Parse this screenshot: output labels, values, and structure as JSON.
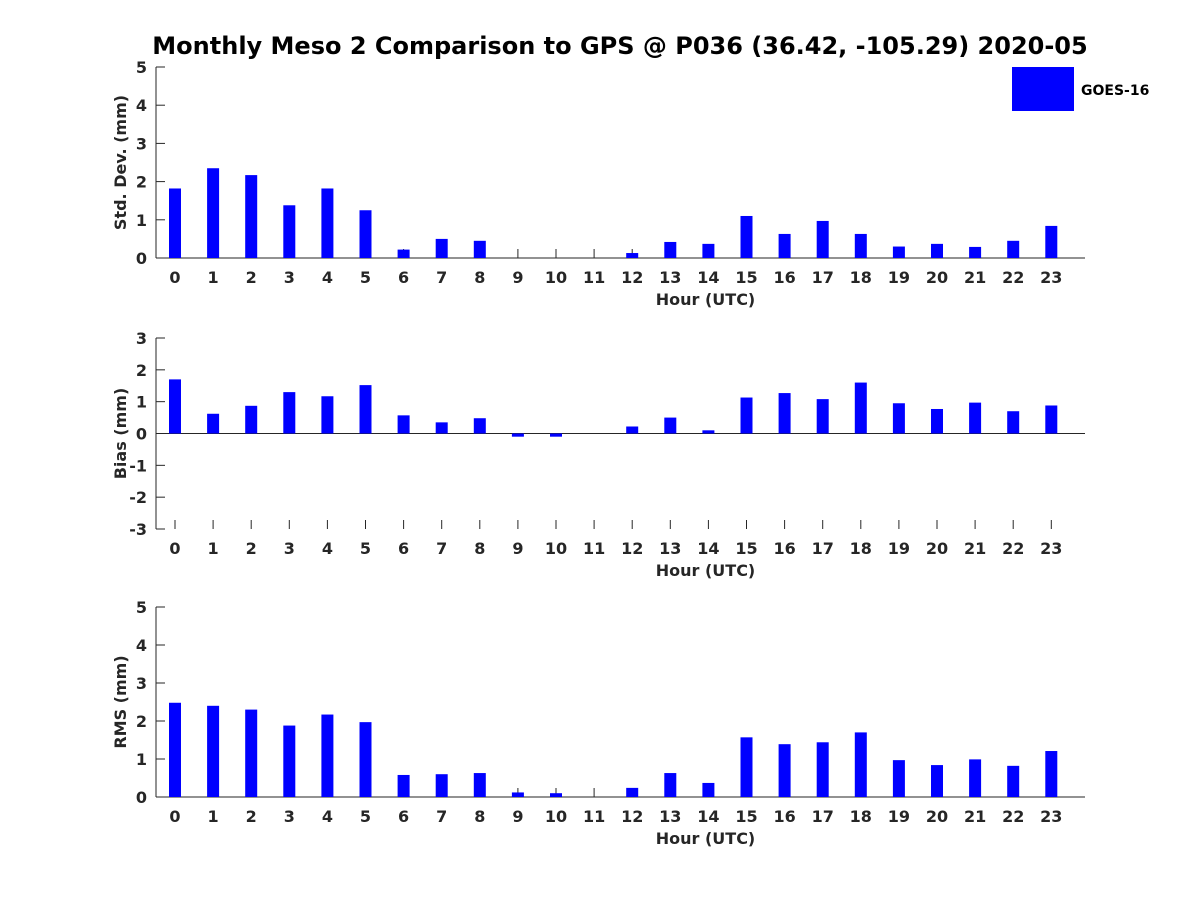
{
  "figure_title": "Monthly Meso 2 Comparison to GPS @ P036 (36.42, -105.29) 2020-05",
  "legend": {
    "label": "GOES-16",
    "color": "#0000ff"
  },
  "chart_data": [
    {
      "type": "bar",
      "ylabel": "Std. Dev. (mm)",
      "xlabel": "Hour (UTC)",
      "categories": [
        "0",
        "1",
        "2",
        "3",
        "4",
        "5",
        "6",
        "7",
        "8",
        "9",
        "10",
        "11",
        "12",
        "13",
        "14",
        "15",
        "16",
        "17",
        "18",
        "19",
        "20",
        "21",
        "22",
        "23"
      ],
      "ylim": [
        0,
        5
      ],
      "yticks": [
        0,
        1,
        2,
        3,
        4,
        5
      ],
      "series": [
        {
          "name": "GOES-16",
          "color": "#0000ff",
          "values": [
            1.82,
            2.35,
            2.17,
            1.38,
            1.82,
            1.25,
            0.22,
            0.5,
            0.45,
            0,
            0,
            0,
            0.13,
            0.42,
            0.37,
            1.1,
            0.63,
            0.97,
            0.63,
            0.3,
            0.37,
            0.29,
            0.45,
            0.84
          ]
        }
      ]
    },
    {
      "type": "bar",
      "ylabel": "Bias (mm)",
      "xlabel": "Hour (UTC)",
      "categories": [
        "0",
        "1",
        "2",
        "3",
        "4",
        "5",
        "6",
        "7",
        "8",
        "9",
        "10",
        "11",
        "12",
        "13",
        "14",
        "15",
        "16",
        "17",
        "18",
        "19",
        "20",
        "21",
        "22",
        "23"
      ],
      "ylim": [
        -3,
        3
      ],
      "yticks": [
        -3,
        -2,
        -1,
        0,
        1,
        2,
        3
      ],
      "series": [
        {
          "name": "GOES-16",
          "color": "#0000ff",
          "values": [
            1.7,
            0.62,
            0.87,
            1.3,
            1.17,
            1.52,
            0.57,
            0.35,
            0.48,
            -0.1,
            -0.1,
            0,
            0.22,
            0.5,
            0.1,
            1.13,
            1.27,
            1.08,
            1.6,
            0.95,
            0.77,
            0.97,
            0.7,
            0.88
          ]
        }
      ]
    },
    {
      "type": "bar",
      "ylabel": "RMS (mm)",
      "xlabel": "Hour (UTC)",
      "categories": [
        "0",
        "1",
        "2",
        "3",
        "4",
        "5",
        "6",
        "7",
        "8",
        "9",
        "10",
        "11",
        "12",
        "13",
        "14",
        "15",
        "16",
        "17",
        "18",
        "19",
        "20",
        "21",
        "22",
        "23"
      ],
      "ylim": [
        0,
        5
      ],
      "yticks": [
        0,
        1,
        2,
        3,
        4,
        5
      ],
      "series": [
        {
          "name": "GOES-16",
          "color": "#0000ff",
          "values": [
            2.48,
            2.4,
            2.3,
            1.88,
            2.17,
            1.97,
            0.58,
            0.6,
            0.63,
            0.12,
            0.1,
            0,
            0.24,
            0.63,
            0.37,
            1.57,
            1.39,
            1.44,
            1.7,
            0.97,
            0.84,
            0.99,
            0.82,
            1.21
          ]
        }
      ]
    }
  ]
}
